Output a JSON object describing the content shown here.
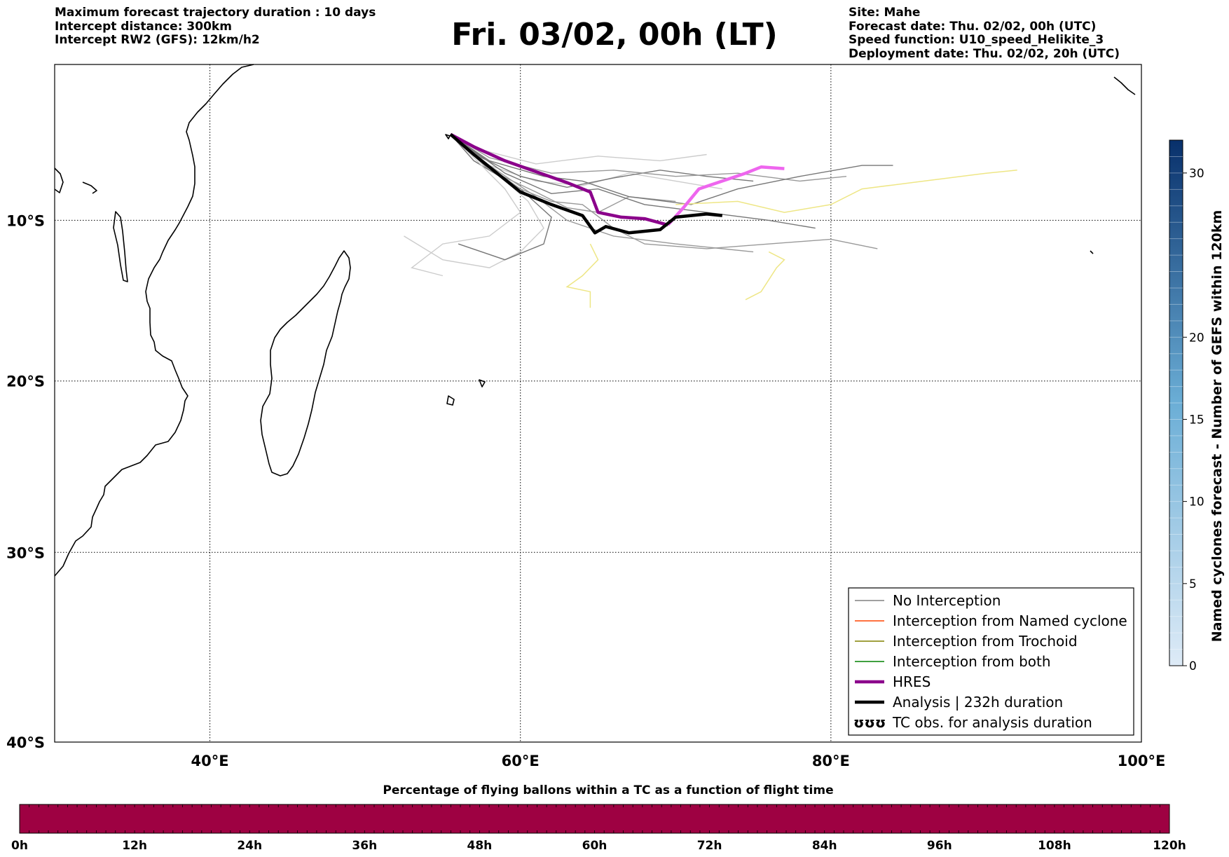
{
  "header": {
    "left": [
      "Maximum forecast trajectory duration : 10 days",
      "Intercept distance: 300km",
      "Intercept RW2 (GFS):  12km/h2"
    ],
    "title": "Fri. 03/02, 00h (LT)",
    "right": [
      "Site: Mahe",
      "Forecast date: Thu. 02/02, 00h (UTC)",
      "Speed function: U10_speed_Helikite_3",
      "Deployment date: Thu. 02/02, 20h (UTC)"
    ]
  },
  "map": {
    "lon_range": [
      30,
      100
    ],
    "lat_range": [
      -40,
      0
    ],
    "lat_ticks": [
      {
        "value": -10,
        "label": "10°S"
      },
      {
        "value": -20,
        "label": "20°S"
      },
      {
        "value": -30,
        "label": "30°S"
      },
      {
        "value": -40,
        "label": "40°S"
      }
    ],
    "lon_ticks": [
      {
        "value": 40,
        "label": "40°E"
      },
      {
        "value": 60,
        "label": "60°E"
      },
      {
        "value": 80,
        "label": "80°E"
      },
      {
        "value": 100,
        "label": "100°E"
      }
    ],
    "gridlines": "dotted"
  },
  "legend": {
    "placement": "bottom-right",
    "items": [
      {
        "label": "No Interception",
        "color": "#808080",
        "style": "thin"
      },
      {
        "label": "Interception from Named cyclone",
        "color": "#ff4500",
        "style": "thin"
      },
      {
        "label": "Interception from Trochoid",
        "color": "#808000",
        "style": "thin"
      },
      {
        "label": "Interception from both",
        "color": "#008000",
        "style": "thin"
      },
      {
        "label": "HRES",
        "color": "#8b008b",
        "style": "thick"
      },
      {
        "label": "Analysis | 232h duration",
        "color": "#000000",
        "style": "thick"
      },
      {
        "label": "TC obs. for analysis duration",
        "color": "#000000",
        "style": "symbol",
        "symbol": "ʊʊʊ"
      }
    ]
  },
  "colorbar_right": {
    "label": "Named cyclones forecast - Number of GEFS within 120km",
    "range": [
      0,
      32
    ],
    "ticks": [
      "0",
      "5",
      "10",
      "15",
      "20",
      "30"
    ],
    "colors": [
      "#deebf7",
      "#08306b"
    ]
  },
  "colorbar_bottom": {
    "title": "Percentage of flying ballons within a TC as a function of flight time",
    "ticks": [
      "0h",
      "12h",
      "24h",
      "36h",
      "48h",
      "60h",
      "72h",
      "84h",
      "96h",
      "108h",
      "120h"
    ],
    "fill_color": "#9e0142"
  },
  "chart_data": {
    "type": "line",
    "title": "Fri. 03/02, 00h (LT)",
    "xlabel": "",
    "ylabel": "",
    "xlim": [
      30,
      100
    ],
    "ylim": [
      -40,
      0
    ],
    "series": [
      {
        "name": "HRES",
        "color": "#8b008b",
        "x": [
          55.5,
          57,
          59,
          61,
          63,
          64.5,
          65,
          66.5,
          68,
          69.5
        ],
        "y": [
          -4.5,
          -5.3,
          -6.2,
          -6.9,
          -7.6,
          -8.2,
          -9.5,
          -9.8,
          -9.9,
          -10.3
        ]
      },
      {
        "name": "HRES (later)",
        "color": "#ee66ee",
        "x": [
          69.5,
          70.5,
          71.5,
          73,
          74.5,
          75.5,
          77
        ],
        "y": [
          -10.3,
          -9.2,
          -8.0,
          -7.5,
          -7.0,
          -6.6,
          -6.7
        ]
      },
      {
        "name": "Analysis | 232h duration",
        "color": "#000000",
        "x": [
          55.5,
          57,
          58.5,
          60,
          62,
          64,
          64.8,
          65.5,
          67,
          69,
          70,
          72,
          73
        ],
        "y": [
          -4.5,
          -5.8,
          -7.0,
          -8.2,
          -9.0,
          -9.7,
          -10.8,
          -10.4,
          -10.8,
          -10.6,
          -9.8,
          -9.6,
          -9.7
        ]
      }
    ]
  }
}
